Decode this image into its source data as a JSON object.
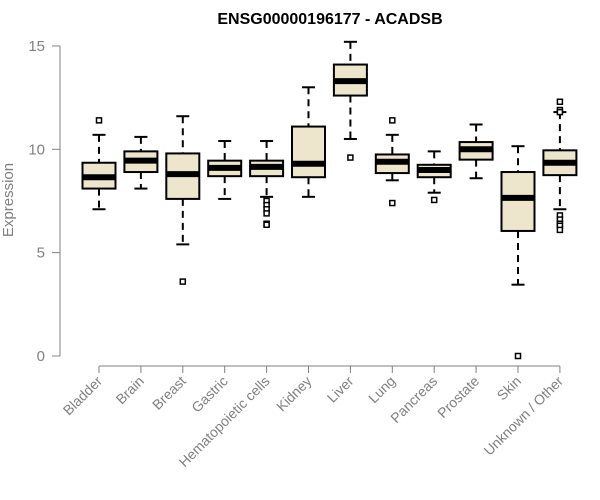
{
  "chart_data": {
    "type": "boxplot",
    "title": "ENSG00000196177 - ACADSB",
    "xlabel": "",
    "ylabel": "Expression",
    "ylim": [
      0,
      15
    ],
    "yticks": [
      0,
      5,
      10,
      15
    ],
    "box_fill": "#ede6cc",
    "categories": [
      "Bladder",
      "Brain",
      "Breast",
      "Gastric",
      "Hematopoietic cells",
      "Kidney",
      "Liver",
      "Lung",
      "Pancreas",
      "Prostate",
      "Skin",
      "Unknown / Other"
    ],
    "boxes": [
      {
        "category": "Bladder",
        "whisker_low": 7.1,
        "q1": 8.1,
        "median": 8.65,
        "q3": 9.35,
        "whisker_high": 10.7,
        "outliers": [
          11.4
        ]
      },
      {
        "category": "Brain",
        "whisker_low": 8.1,
        "q1": 8.9,
        "median": 9.45,
        "q3": 9.9,
        "whisker_high": 10.6,
        "outliers": []
      },
      {
        "category": "Breast",
        "whisker_low": 5.4,
        "q1": 7.6,
        "median": 8.8,
        "q3": 9.8,
        "whisker_high": 11.6,
        "outliers": [
          3.6
        ]
      },
      {
        "category": "Gastric",
        "whisker_low": 7.6,
        "q1": 8.7,
        "median": 9.1,
        "q3": 9.45,
        "whisker_high": 10.4,
        "outliers": []
      },
      {
        "category": "Hematopoietic cells",
        "whisker_low": 7.7,
        "q1": 8.7,
        "median": 9.15,
        "q3": 9.45,
        "whisker_high": 10.4,
        "outliers": [
          7.5,
          7.3,
          7.1,
          6.9,
          6.4,
          6.35
        ]
      },
      {
        "category": "Kidney",
        "whisker_low": 7.7,
        "q1": 8.65,
        "median": 9.3,
        "q3": 11.1,
        "whisker_high": 13.0,
        "outliers": []
      },
      {
        "category": "Liver",
        "whisker_low": 10.5,
        "q1": 12.6,
        "median": 13.3,
        "q3": 14.1,
        "whisker_high": 15.2,
        "outliers": [
          9.6
        ]
      },
      {
        "category": "Lung",
        "whisker_low": 8.5,
        "q1": 8.85,
        "median": 9.4,
        "q3": 9.75,
        "whisker_high": 10.7,
        "outliers": [
          11.4,
          7.4
        ]
      },
      {
        "category": "Pancreas",
        "whisker_low": 7.9,
        "q1": 8.65,
        "median": 9.0,
        "q3": 9.25,
        "whisker_high": 9.9,
        "outliers": [
          7.55
        ]
      },
      {
        "category": "Prostate",
        "whisker_low": 8.6,
        "q1": 9.5,
        "median": 10.0,
        "q3": 10.35,
        "whisker_high": 11.2,
        "outliers": []
      },
      {
        "category": "Skin",
        "whisker_low": 3.45,
        "q1": 6.05,
        "median": 7.65,
        "q3": 8.9,
        "whisker_high": 10.15,
        "outliers": [
          0.0
        ]
      },
      {
        "category": "Unknown / Other",
        "whisker_low": 7.1,
        "q1": 8.75,
        "median": 9.35,
        "q3": 9.95,
        "whisker_high": 11.8,
        "outliers": [
          12.3,
          11.9,
          11.8,
          6.8,
          6.6,
          6.4,
          6.3,
          6.1
        ]
      }
    ]
  }
}
